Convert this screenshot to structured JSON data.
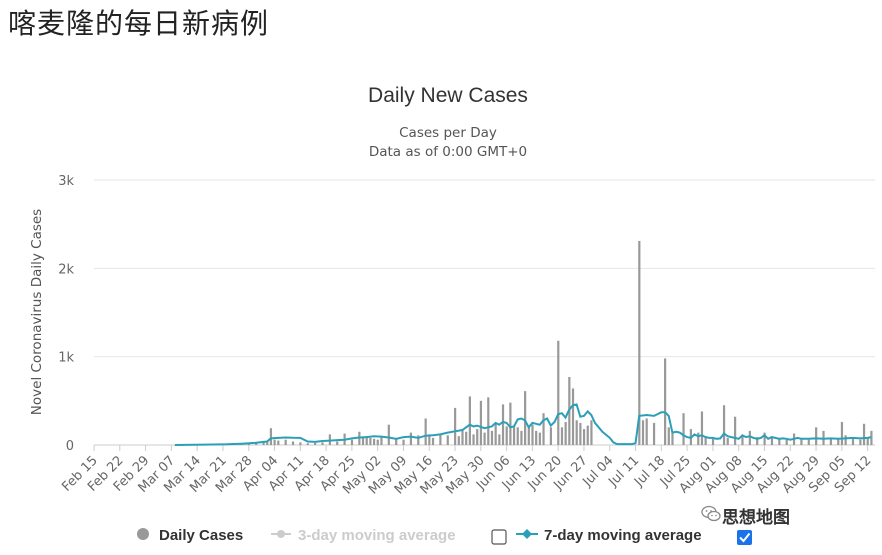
{
  "page_title": "喀麦隆的每日新病例",
  "watermark_text": "思想地图",
  "watermark_icon": "wechat-icon",
  "colors": {
    "bar": "#999999",
    "ma7": "#2aa0b8",
    "ma3": "#cccccc",
    "grid": "#e6e6e6",
    "checkbox_checked": "#1a73e8"
  },
  "chart_data": {
    "type": "bar",
    "title": "Daily New Cases",
    "subtitle_line1": "Cases per Day",
    "subtitle_line2": "Data as of 0:00 GMT+0",
    "ylabel": "Novel Coronavirus Daily Cases",
    "ylim": [
      0,
      3000
    ],
    "y_ticks": [
      {
        "value": 0,
        "label": "0"
      },
      {
        "value": 1000,
        "label": "1k"
      },
      {
        "value": 2000,
        "label": "2k"
      },
      {
        "value": 3000,
        "label": "3k"
      }
    ],
    "x_start_date": "Feb 15",
    "x_total_days": 212,
    "x_ticks": [
      {
        "day": 0,
        "label": "Feb 15"
      },
      {
        "day": 7,
        "label": "Feb 22"
      },
      {
        "day": 14,
        "label": "Feb 29"
      },
      {
        "day": 21,
        "label": "Mar 07"
      },
      {
        "day": 28,
        "label": "Mar 14"
      },
      {
        "day": 35,
        "label": "Mar 21"
      },
      {
        "day": 42,
        "label": "Mar 28"
      },
      {
        "day": 49,
        "label": "Apr 04"
      },
      {
        "day": 56,
        "label": "Apr 11"
      },
      {
        "day": 63,
        "label": "Apr 18"
      },
      {
        "day": 70,
        "label": "Apr 25"
      },
      {
        "day": 77,
        "label": "May 02"
      },
      {
        "day": 84,
        "label": "May 09"
      },
      {
        "day": 91,
        "label": "May 16"
      },
      {
        "day": 98,
        "label": "May 23"
      },
      {
        "day": 105,
        "label": "May 30"
      },
      {
        "day": 112,
        "label": "Jun 06"
      },
      {
        "day": 119,
        "label": "Jun 13"
      },
      {
        "day": 126,
        "label": "Jun 20"
      },
      {
        "day": 133,
        "label": "Jun 27"
      },
      {
        "day": 140,
        "label": "Jul 04"
      },
      {
        "day": 147,
        "label": "Jul 11"
      },
      {
        "day": 154,
        "label": "Jul 18"
      },
      {
        "day": 161,
        "label": "Jul 25"
      },
      {
        "day": 168,
        "label": "Aug 01"
      },
      {
        "day": 175,
        "label": "Aug 08"
      },
      {
        "day": 182,
        "label": "Aug 15"
      },
      {
        "day": 189,
        "label": "Aug 22"
      },
      {
        "day": 196,
        "label": "Aug 29"
      },
      {
        "day": 203,
        "label": "Sep 05"
      },
      {
        "day": 210,
        "label": "Sep 12"
      }
    ],
    "daily_cases": [
      [
        22,
        1
      ],
      [
        24,
        1
      ],
      [
        26,
        2
      ],
      [
        28,
        3
      ],
      [
        30,
        5
      ],
      [
        32,
        6
      ],
      [
        34,
        10
      ],
      [
        36,
        12
      ],
      [
        38,
        15
      ],
      [
        40,
        20
      ],
      [
        42,
        25
      ],
      [
        44,
        30
      ],
      [
        46,
        35
      ],
      [
        47,
        40
      ],
      [
        48,
        190
      ],
      [
        49,
        60
      ],
      [
        50,
        50
      ],
      [
        52,
        60
      ],
      [
        54,
        40
      ],
      [
        56,
        30
      ],
      [
        58,
        20
      ],
      [
        60,
        25
      ],
      [
        62,
        30
      ],
      [
        64,
        120
      ],
      [
        66,
        40
      ],
      [
        68,
        130
      ],
      [
        70,
        60
      ],
      [
        72,
        150
      ],
      [
        73,
        90
      ],
      [
        74,
        100
      ],
      [
        75,
        80
      ],
      [
        76,
        70
      ],
      [
        77,
        60
      ],
      [
        78,
        90
      ],
      [
        80,
        230
      ],
      [
        82,
        80
      ],
      [
        84,
        60
      ],
      [
        86,
        140
      ],
      [
        88,
        110
      ],
      [
        90,
        300
      ],
      [
        91,
        120
      ],
      [
        92,
        80
      ],
      [
        94,
        130
      ],
      [
        96,
        110
      ],
      [
        98,
        420
      ],
      [
        99,
        100
      ],
      [
        100,
        180
      ],
      [
        101,
        150
      ],
      [
        102,
        550
      ],
      [
        103,
        120
      ],
      [
        104,
        180
      ],
      [
        105,
        500
      ],
      [
        106,
        140
      ],
      [
        107,
        540
      ],
      [
        108,
        160
      ],
      [
        109,
        250
      ],
      [
        110,
        120
      ],
      [
        111,
        460
      ],
      [
        112,
        210
      ],
      [
        113,
        480
      ],
      [
        114,
        220
      ],
      [
        115,
        200
      ],
      [
        116,
        160
      ],
      [
        117,
        610
      ],
      [
        118,
        200
      ],
      [
        119,
        230
      ],
      [
        120,
        160
      ],
      [
        121,
        140
      ],
      [
        122,
        360
      ],
      [
        124,
        200
      ],
      [
        126,
        1180
      ],
      [
        127,
        200
      ],
      [
        128,
        260
      ],
      [
        129,
        770
      ],
      [
        130,
        640
      ],
      [
        131,
        280
      ],
      [
        132,
        250
      ],
      [
        133,
        180
      ],
      [
        134,
        220
      ],
      [
        135,
        280
      ],
      [
        148,
        2310
      ],
      [
        149,
        280
      ],
      [
        150,
        300
      ],
      [
        152,
        250
      ],
      [
        155,
        980
      ],
      [
        156,
        200
      ],
      [
        157,
        150
      ],
      [
        160,
        360
      ],
      [
        162,
        180
      ],
      [
        164,
        140
      ],
      [
        165,
        380
      ],
      [
        166,
        100
      ],
      [
        168,
        70
      ],
      [
        171,
        450
      ],
      [
        172,
        80
      ],
      [
        174,
        320
      ],
      [
        176,
        110
      ],
      [
        178,
        160
      ],
      [
        180,
        90
      ],
      [
        182,
        140
      ],
      [
        184,
        90
      ],
      [
        186,
        70
      ],
      [
        188,
        60
      ],
      [
        190,
        130
      ],
      [
        192,
        80
      ],
      [
        194,
        60
      ],
      [
        196,
        200
      ],
      [
        198,
        160
      ],
      [
        200,
        80
      ],
      [
        202,
        70
      ],
      [
        203,
        260
      ],
      [
        204,
        110
      ],
      [
        206,
        90
      ],
      [
        208,
        60
      ],
      [
        209,
        240
      ],
      [
        210,
        90
      ],
      [
        211,
        160
      ]
    ],
    "ma7": [
      [
        22,
        0
      ],
      [
        30,
        5
      ],
      [
        36,
        8
      ],
      [
        40,
        15
      ],
      [
        44,
        25
      ],
      [
        47,
        40
      ],
      [
        48,
        75
      ],
      [
        50,
        80
      ],
      [
        52,
        85
      ],
      [
        54,
        82
      ],
      [
        56,
        80
      ],
      [
        58,
        40
      ],
      [
        60,
        35
      ],
      [
        62,
        45
      ],
      [
        64,
        50
      ],
      [
        66,
        55
      ],
      [
        68,
        60
      ],
      [
        70,
        75
      ],
      [
        72,
        85
      ],
      [
        74,
        90
      ],
      [
        76,
        100
      ],
      [
        78,
        95
      ],
      [
        80,
        85
      ],
      [
        82,
        70
      ],
      [
        84,
        90
      ],
      [
        86,
        95
      ],
      [
        88,
        80
      ],
      [
        90,
        105
      ],
      [
        92,
        110
      ],
      [
        94,
        120
      ],
      [
        96,
        140
      ],
      [
        98,
        155
      ],
      [
        100,
        170
      ],
      [
        101,
        200
      ],
      [
        102,
        230
      ],
      [
        103,
        210
      ],
      [
        104,
        220
      ],
      [
        106,
        190
      ],
      [
        107,
        200
      ],
      [
        108,
        210
      ],
      [
        109,
        250
      ],
      [
        110,
        230
      ],
      [
        111,
        260
      ],
      [
        112,
        250
      ],
      [
        113,
        200
      ],
      [
        114,
        210
      ],
      [
        115,
        290
      ],
      [
        116,
        300
      ],
      [
        117,
        280
      ],
      [
        118,
        200
      ],
      [
        119,
        250
      ],
      [
        120,
        240
      ],
      [
        121,
        230
      ],
      [
        122,
        280
      ],
      [
        123,
        300
      ],
      [
        124,
        220
      ],
      [
        125,
        260
      ],
      [
        126,
        350
      ],
      [
        127,
        360
      ],
      [
        128,
        310
      ],
      [
        129,
        400
      ],
      [
        130,
        450
      ],
      [
        131,
        460
      ],
      [
        132,
        320
      ],
      [
        133,
        330
      ],
      [
        134,
        380
      ],
      [
        135,
        340
      ],
      [
        136,
        250
      ],
      [
        138,
        150
      ],
      [
        140,
        80
      ],
      [
        141,
        30
      ],
      [
        142,
        10
      ],
      [
        146,
        10
      ],
      [
        147,
        20
      ],
      [
        148,
        330
      ],
      [
        150,
        340
      ],
      [
        152,
        330
      ],
      [
        153,
        350
      ],
      [
        154,
        370
      ],
      [
        155,
        370
      ],
      [
        156,
        330
      ],
      [
        157,
        140
      ],
      [
        158,
        150
      ],
      [
        159,
        140
      ],
      [
        160,
        110
      ],
      [
        161,
        90
      ],
      [
        162,
        80
      ],
      [
        163,
        120
      ],
      [
        164,
        100
      ],
      [
        165,
        110
      ],
      [
        166,
        90
      ],
      [
        167,
        80
      ],
      [
        168,
        80
      ],
      [
        169,
        70
      ],
      [
        170,
        75
      ],
      [
        171,
        130
      ],
      [
        172,
        100
      ],
      [
        173,
        90
      ],
      [
        174,
        80
      ],
      [
        175,
        70
      ],
      [
        176,
        110
      ],
      [
        177,
        90
      ],
      [
        178,
        100
      ],
      [
        179,
        80
      ],
      [
        180,
        70
      ],
      [
        181,
        80
      ],
      [
        182,
        110
      ],
      [
        183,
        70
      ],
      [
        184,
        90
      ],
      [
        185,
        80
      ],
      [
        186,
        70
      ],
      [
        187,
        75
      ],
      [
        188,
        70
      ],
      [
        189,
        60
      ],
      [
        190,
        70
      ],
      [
        191,
        80
      ],
      [
        192,
        70
      ],
      [
        194,
        70
      ],
      [
        196,
        75
      ],
      [
        198,
        70
      ],
      [
        200,
        75
      ],
      [
        202,
        70
      ],
      [
        204,
        75
      ],
      [
        206,
        80
      ],
      [
        208,
        75
      ],
      [
        210,
        80
      ],
      [
        211,
        90
      ]
    ],
    "legend": [
      {
        "label": "Daily Cases",
        "enabled": true
      },
      {
        "label": "3-day moving average",
        "enabled": false,
        "checked": false
      },
      {
        "label": "7-day moving average",
        "enabled": true,
        "checked": true
      }
    ]
  }
}
